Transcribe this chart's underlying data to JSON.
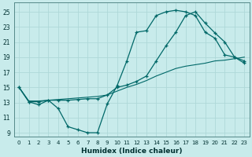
{
  "xlabel": "Humidex (Indice chaleur)",
  "bg_color": "#c8ebeb",
  "grid_color": "#aed8d8",
  "line_color": "#006868",
  "xlim": [
    -0.5,
    23.5
  ],
  "ylim": [
    8.5,
    26.2
  ],
  "xticks": [
    0,
    1,
    2,
    3,
    4,
    5,
    6,
    7,
    8,
    9,
    10,
    11,
    12,
    13,
    14,
    15,
    16,
    17,
    18,
    19,
    20,
    21,
    22,
    23
  ],
  "yticks": [
    9,
    11,
    13,
    15,
    17,
    19,
    21,
    23,
    25
  ],
  "line1_x": [
    0,
    1,
    2,
    3,
    4,
    5,
    6,
    7,
    8,
    9,
    10,
    11,
    12,
    13,
    14,
    15,
    16,
    17,
    18,
    19,
    20,
    21,
    22,
    23
  ],
  "line1_y": [
    15,
    13.1,
    12.7,
    13.3,
    12.2,
    9.8,
    9.4,
    9.0,
    9.0,
    12.8,
    15.2,
    18.5,
    22.3,
    22.5,
    24.5,
    25.0,
    25.2,
    25.0,
    24.5,
    22.3,
    21.5,
    19.3,
    19.0,
    18.5
  ],
  "line2_x": [
    0,
    1,
    2,
    3,
    4,
    5,
    6,
    7,
    8,
    9,
    10,
    11,
    12,
    13,
    14,
    15,
    16,
    17,
    18,
    19,
    20,
    21,
    22,
    23
  ],
  "line2_y": [
    15,
    13.1,
    13.1,
    13.3,
    13.3,
    13.3,
    13.4,
    13.5,
    13.5,
    14.0,
    15.0,
    15.3,
    15.8,
    16.5,
    18.5,
    20.5,
    22.3,
    24.5,
    25.0,
    23.5,
    22.2,
    21.0,
    19.0,
    18.2
  ],
  "line3_x": [
    0,
    1,
    2,
    3,
    4,
    5,
    6,
    7,
    8,
    9,
    10,
    11,
    12,
    13,
    14,
    15,
    16,
    17,
    18,
    19,
    20,
    21,
    22,
    23
  ],
  "line3_y": [
    15,
    13.2,
    13.2,
    13.3,
    13.4,
    13.5,
    13.6,
    13.7,
    13.8,
    14.0,
    14.5,
    15.0,
    15.4,
    15.9,
    16.5,
    17.0,
    17.5,
    17.8,
    18.0,
    18.2,
    18.5,
    18.6,
    18.8,
    19.0
  ]
}
